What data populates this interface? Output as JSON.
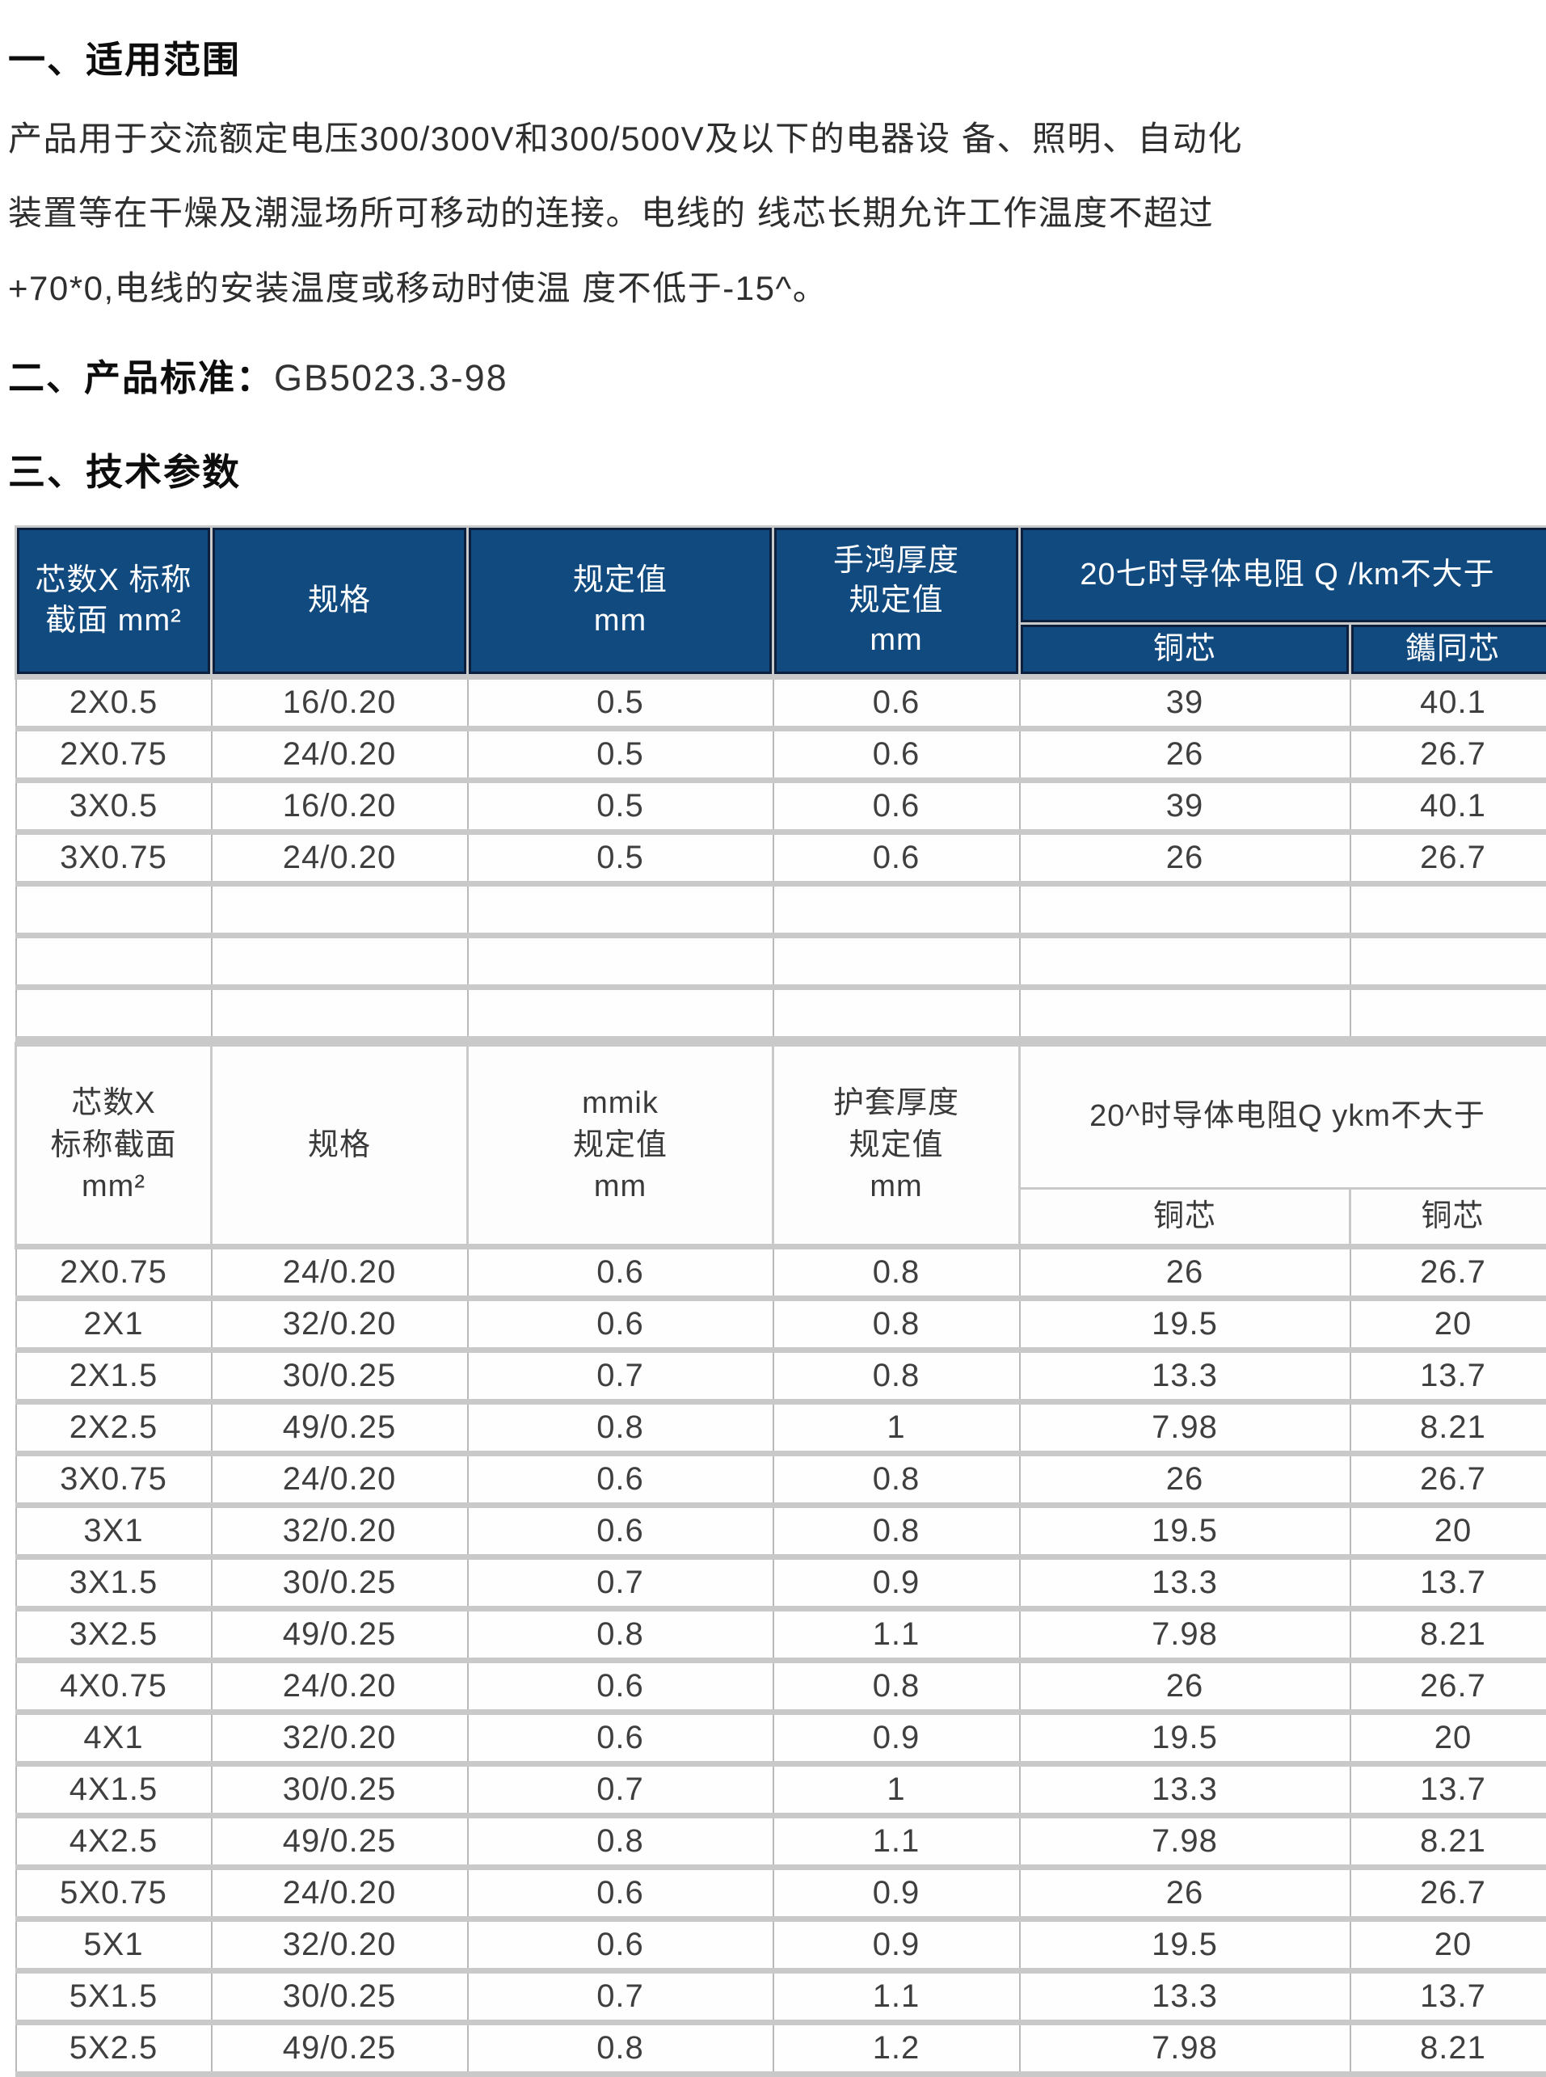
{
  "document": {
    "section_scope": {
      "heading": "一、适用范围",
      "line1": "产品用于交流额定电压300/300V和300/500V及以下的电器设 备、照明、自动化",
      "line2": "装置等在干燥及潮湿场所可移动的连接。电线的 线芯长期允许工作温度不超过",
      "line3": "+70*0,电线的安装温度或移动时使温 度不低于-15^。"
    },
    "section_standard": {
      "heading": "二、产品标准：",
      "value": "GB5023.3-98"
    },
    "section_params": {
      "heading": "三、技术参数"
    }
  },
  "colors": {
    "header_blue": "#114a7f",
    "header_dark_edge": "#0c203e",
    "grid_gray": "#c9c9c9"
  },
  "table1": {
    "headers": {
      "col1": "芯数X 标称\n截面 mm²",
      "col2": "规格",
      "col3": "规定值\nmm",
      "col4": "手鸿厚度\n规定值\nmm",
      "resistance_group": "20七时导体电阻 Q /km不大于",
      "sub1": "铜芯",
      "sub2": "鑴同芯"
    },
    "rows": [
      [
        "2X0.5",
        "16/0.20",
        "0.5",
        "0.6",
        "39",
        "40.1"
      ],
      [
        "2X0.75",
        "24/0.20",
        "0.5",
        "0.6",
        "26",
        "26.7"
      ],
      [
        "3X0.5",
        "16/0.20",
        "0.5",
        "0.6",
        "39",
        "40.1"
      ],
      [
        "3X0.75",
        "24/0.20",
        "0.5",
        "0.6",
        "26",
        "26.7"
      ],
      [
        "",
        "",
        "",
        "",
        "",
        ""
      ],
      [
        "",
        "",
        "",
        "",
        "",
        ""
      ],
      [
        "",
        "",
        "",
        "",
        "",
        ""
      ]
    ]
  },
  "table2": {
    "headers": {
      "col1": "芯数X\n标称截面\nmm²",
      "col2": "规格",
      "col3": "mmik\n规定值\nmm",
      "col4": "护套厚度\n规定值\nmm",
      "resistance_group": "20^时导体电阻Q ykm不大于",
      "sub1": "铜芯",
      "sub2": "铜芯"
    },
    "rows": [
      [
        "2X0.75",
        "24/0.20",
        "0.6",
        "0.8",
        "26",
        "26.7"
      ],
      [
        "2X1",
        "32/0.20",
        "0.6",
        "0.8",
        "19.5",
        "20"
      ],
      [
        "2X1.5",
        "30/0.25",
        "0.7",
        "0.8",
        "13.3",
        "13.7"
      ],
      [
        "2X2.5",
        "49/0.25",
        "0.8",
        "1",
        "7.98",
        "8.21"
      ],
      [
        "3X0.75",
        "24/0.20",
        "0.6",
        "0.8",
        "26",
        "26.7"
      ],
      [
        "3X1",
        "32/0.20",
        "0.6",
        "0.8",
        "19.5",
        "20"
      ],
      [
        "3X1.5",
        "30/0.25",
        "0.7",
        "0.9",
        "13.3",
        "13.7"
      ],
      [
        "3X2.5",
        "49/0.25",
        "0.8",
        "1.1",
        "7.98",
        "8.21"
      ],
      [
        "4X0.75",
        "24/0.20",
        "0.6",
        "0.8",
        "26",
        "26.7"
      ],
      [
        "4X1",
        "32/0.20",
        "0.6",
        "0.9",
        "19.5",
        "20"
      ],
      [
        "4X1.5",
        "30/0.25",
        "0.7",
        "1",
        "13.3",
        "13.7"
      ],
      [
        "4X2.5",
        "49/0.25",
        "0.8",
        "1.1",
        "7.98",
        "8.21"
      ],
      [
        "5X0.75",
        "24/0.20",
        "0.6",
        "0.9",
        "26",
        "26.7"
      ],
      [
        "5X1",
        "32/0.20",
        "0.6",
        "0.9",
        "19.5",
        "20"
      ],
      [
        "5X1.5",
        "30/0.25",
        "0.7",
        "1.1",
        "13.3",
        "13.7"
      ],
      [
        "5X2.5",
        "49/0.25",
        "0.8",
        "1.2",
        "7.98",
        "8.21"
      ]
    ]
  }
}
